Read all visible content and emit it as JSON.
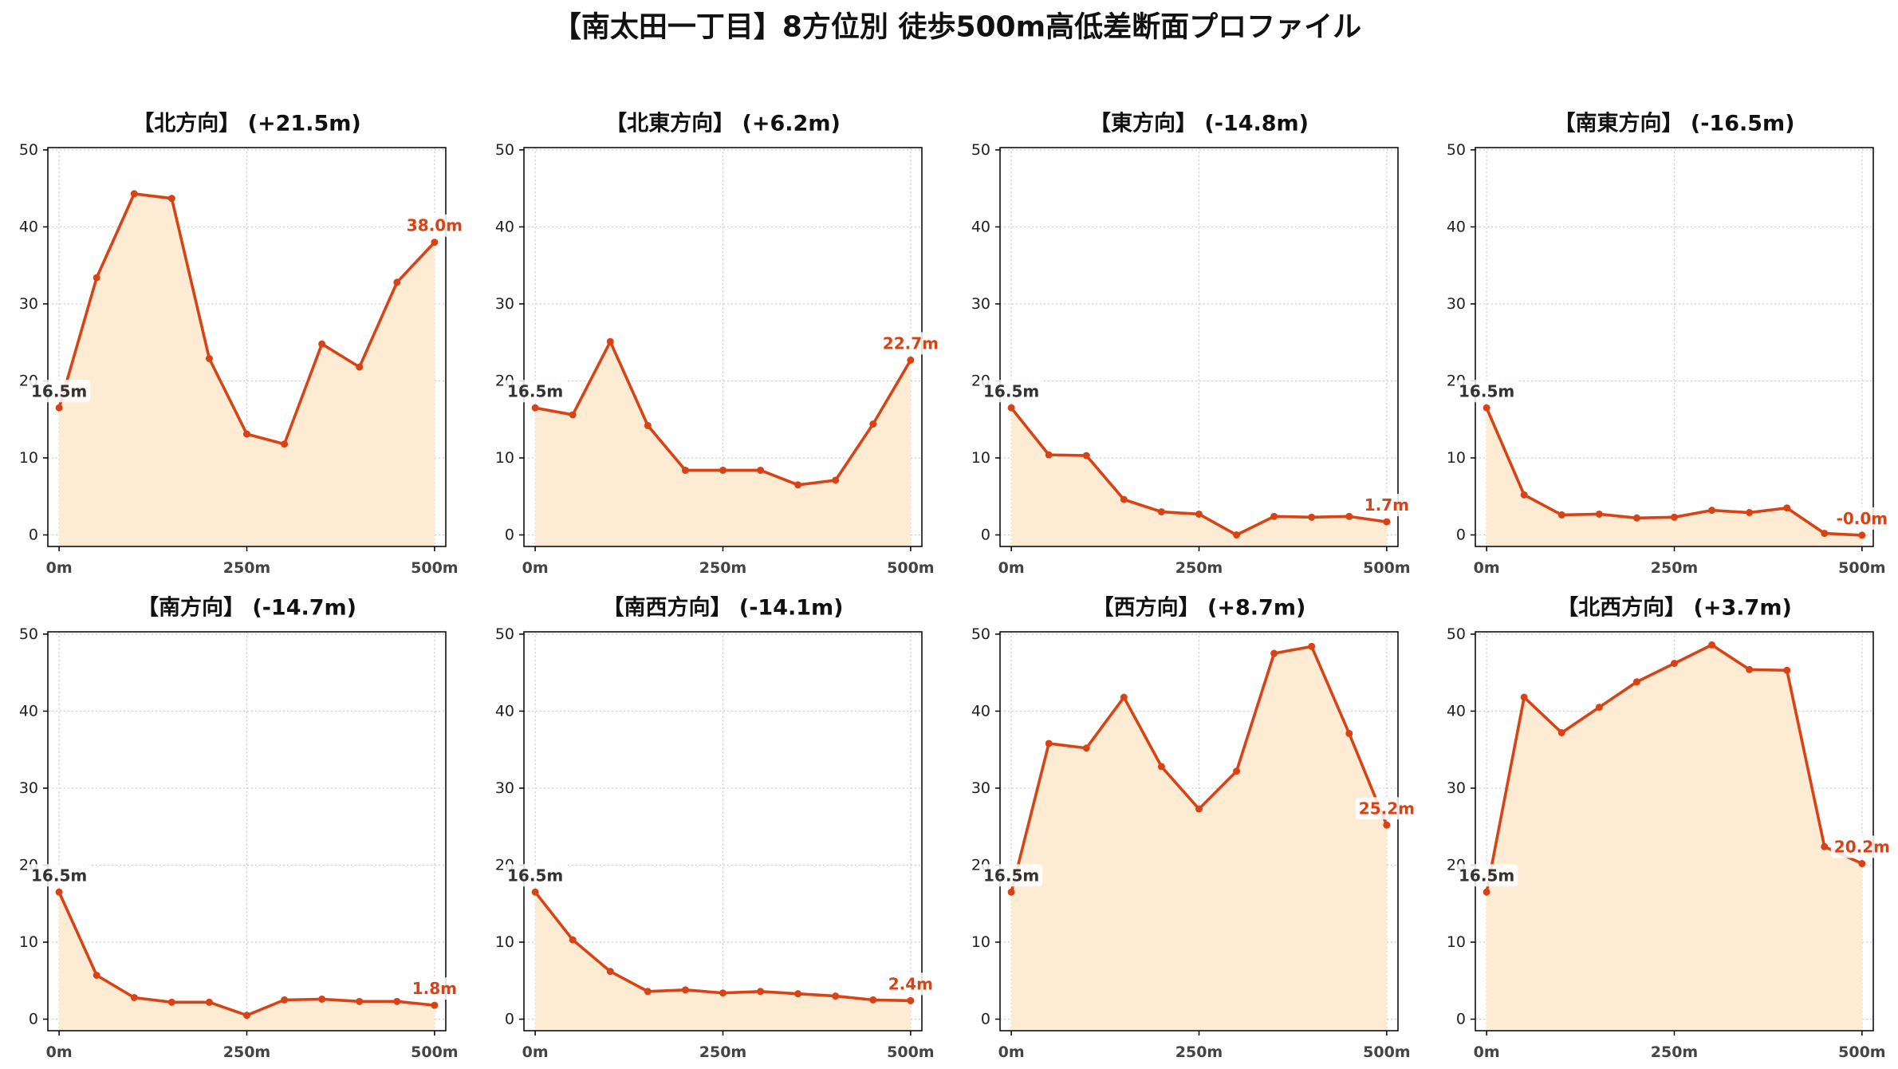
{
  "title": "【南太田一丁目】8方位別 徒歩500m高低差断面プロファイル",
  "colors": {
    "line": "#D84315",
    "fill": "#FDEBD3",
    "start_label": "#333333",
    "end_label": "#D84315",
    "grid": "#CCCCCC"
  },
  "chart_data": [
    {
      "type": "area",
      "title": "【北方向】 (+21.5m)",
      "x": [
        0,
        50,
        100,
        150,
        200,
        250,
        300,
        350,
        400,
        450,
        500
      ],
      "y": [
        16.5,
        33.4,
        44.3,
        43.7,
        22.9,
        13.1,
        11.8,
        24.8,
        21.8,
        32.8,
        38.0
      ],
      "xtick_values": [
        0,
        250,
        500
      ],
      "xtick_labels": [
        "0m",
        "250m",
        "500m"
      ],
      "yticks": [
        0,
        10,
        20,
        30,
        40,
        50
      ],
      "xlim": [
        -15,
        515
      ],
      "ylim": [
        -1.5,
        50.3
      ],
      "start_label": "16.5m",
      "end_label": "38.0m",
      "grid": true
    },
    {
      "type": "area",
      "title": "【北東方向】 (+6.2m)",
      "x": [
        0,
        50,
        100,
        150,
        200,
        250,
        300,
        350,
        400,
        450,
        500
      ],
      "y": [
        16.5,
        15.6,
        25.1,
        14.2,
        8.4,
        8.4,
        8.4,
        6.5,
        7.1,
        14.4,
        22.7
      ],
      "xtick_values": [
        0,
        250,
        500
      ],
      "xtick_labels": [
        "0m",
        "250m",
        "500m"
      ],
      "yticks": [
        0,
        10,
        20,
        30,
        40,
        50
      ],
      "xlim": [
        -15,
        515
      ],
      "ylim": [
        -1.5,
        50.3
      ],
      "start_label": "16.5m",
      "end_label": "22.7m",
      "grid": true
    },
    {
      "type": "area",
      "title": "【東方向】 (-14.8m)",
      "x": [
        0,
        50,
        100,
        150,
        200,
        250,
        300,
        350,
        400,
        450,
        500
      ],
      "y": [
        16.5,
        10.4,
        10.3,
        4.6,
        3.0,
        2.7,
        0.0,
        2.4,
        2.3,
        2.4,
        1.7
      ],
      "xtick_values": [
        0,
        250,
        500
      ],
      "xtick_labels": [
        "0m",
        "250m",
        "500m"
      ],
      "yticks": [
        0,
        10,
        20,
        30,
        40,
        50
      ],
      "xlim": [
        -15,
        515
      ],
      "ylim": [
        -1.5,
        50.3
      ],
      "start_label": "16.5m",
      "end_label": "1.7m",
      "grid": true
    },
    {
      "type": "area",
      "title": "【南東方向】 (-16.5m)",
      "x": [
        0,
        50,
        100,
        150,
        200,
        250,
        300,
        350,
        400,
        450,
        500
      ],
      "y": [
        16.5,
        5.2,
        2.6,
        2.7,
        2.2,
        2.3,
        3.2,
        2.9,
        3.5,
        0.2,
        -0.04
      ],
      "xtick_values": [
        0,
        250,
        500
      ],
      "xtick_labels": [
        "0m",
        "250m",
        "500m"
      ],
      "yticks": [
        0,
        10,
        20,
        30,
        40,
        50
      ],
      "xlim": [
        -15,
        515
      ],
      "ylim": [
        -1.5,
        50.3
      ],
      "start_label": "16.5m",
      "end_label": "-0.0m",
      "grid": true
    },
    {
      "type": "area",
      "title": "【南方向】 (-14.7m)",
      "x": [
        0,
        50,
        100,
        150,
        200,
        250,
        300,
        350,
        400,
        450,
        500
      ],
      "y": [
        16.5,
        5.7,
        2.8,
        2.2,
        2.2,
        0.5,
        2.5,
        2.6,
        2.3,
        2.3,
        1.8
      ],
      "xtick_values": [
        0,
        250,
        500
      ],
      "xtick_labels": [
        "0m",
        "250m",
        "500m"
      ],
      "yticks": [
        0,
        10,
        20,
        30,
        40,
        50
      ],
      "xlim": [
        -15,
        515
      ],
      "ylim": [
        -1.5,
        50.3
      ],
      "start_label": "16.5m",
      "end_label": "1.8m",
      "grid": true
    },
    {
      "type": "area",
      "title": "【南西方向】 (-14.1m)",
      "x": [
        0,
        50,
        100,
        150,
        200,
        250,
        300,
        350,
        400,
        450,
        500
      ],
      "y": [
        16.5,
        10.3,
        6.2,
        3.6,
        3.8,
        3.4,
        3.6,
        3.3,
        3.0,
        2.5,
        2.4
      ],
      "xtick_values": [
        0,
        250,
        500
      ],
      "xtick_labels": [
        "0m",
        "250m",
        "500m"
      ],
      "yticks": [
        0,
        10,
        20,
        30,
        40,
        50
      ],
      "xlim": [
        -15,
        515
      ],
      "ylim": [
        -1.5,
        50.3
      ],
      "start_label": "16.5m",
      "end_label": "2.4m",
      "grid": true
    },
    {
      "type": "area",
      "title": "【西方向】 (+8.7m)",
      "x": [
        0,
        50,
        100,
        150,
        200,
        250,
        300,
        350,
        400,
        450,
        500
      ],
      "y": [
        16.5,
        35.8,
        35.2,
        41.8,
        32.8,
        27.3,
        32.2,
        47.5,
        48.4,
        37.1,
        25.2
      ],
      "xtick_values": [
        0,
        250,
        500
      ],
      "xtick_labels": [
        "0m",
        "250m",
        "500m"
      ],
      "yticks": [
        0,
        10,
        20,
        30,
        40,
        50
      ],
      "xlim": [
        -15,
        515
      ],
      "ylim": [
        -1.5,
        50.3
      ],
      "start_label": "16.5m",
      "end_label": "25.2m",
      "grid": true
    },
    {
      "type": "area",
      "title": "【北西方向】 (+3.7m)",
      "x": [
        0,
        50,
        100,
        150,
        200,
        250,
        300,
        350,
        400,
        450,
        500
      ],
      "y": [
        16.5,
        41.8,
        37.2,
        40.5,
        43.8,
        46.2,
        48.6,
        45.4,
        45.3,
        22.4,
        20.2
      ],
      "xtick_values": [
        0,
        250,
        500
      ],
      "xtick_labels": [
        "0m",
        "250m",
        "500m"
      ],
      "yticks": [
        0,
        10,
        20,
        30,
        40,
        50
      ],
      "xlim": [
        -15,
        515
      ],
      "ylim": [
        -1.5,
        50.3
      ],
      "start_label": "16.5m",
      "end_label": "20.2m",
      "grid": true
    }
  ]
}
